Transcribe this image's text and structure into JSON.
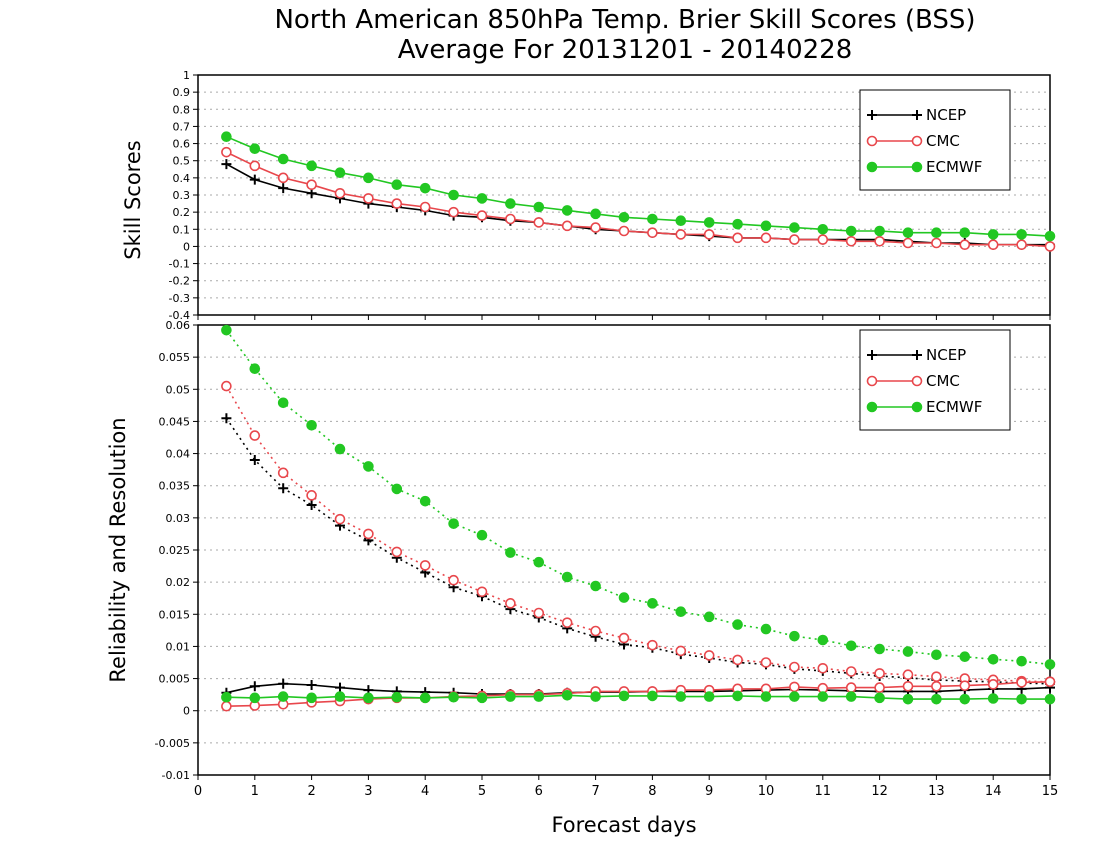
{
  "title_line1": "North American 850hPa Temp. Brier Skill Scores (BSS)",
  "title_line2": "Average For 20131201 - 20140228",
  "xlabel": "Forecast days",
  "colors": {
    "NCEP": "#000000",
    "CMC": "#e8474c",
    "ECMWF": "#22c722",
    "grid": "#aaaaaa"
  },
  "chart_data": [
    {
      "type": "line",
      "ylabel": "Skill Scores",
      "xlim": [
        0,
        15
      ],
      "ylim": [
        -0.4,
        1
      ],
      "x_ticks": [
        "0",
        "1",
        "2",
        "3",
        "4",
        "5",
        "6",
        "7",
        "8",
        "9",
        "10",
        "11",
        "12",
        "13",
        "14",
        "15"
      ],
      "y_ticks": [
        "-0.4",
        "-0.3",
        "-0.2",
        "-0.1",
        "0",
        "0.1",
        "0.2",
        "0.3",
        "0.4",
        "0.5",
        "0.6",
        "0.7",
        "0.8",
        "0.9",
        "1"
      ],
      "grid": "horizontal dotted",
      "legend_position": "top-right",
      "x": [
        0.5,
        1,
        1.5,
        2,
        2.5,
        3,
        3.5,
        4,
        4.5,
        5,
        5.5,
        6,
        6.5,
        7,
        7.5,
        8,
        8.5,
        9,
        9.5,
        10,
        10.5,
        11,
        11.5,
        12,
        12.5,
        13,
        13.5,
        14,
        14.5,
        15
      ],
      "series": [
        {
          "name": "NCEP",
          "marker": "plus",
          "line": "solid",
          "values": [
            0.48,
            0.39,
            0.34,
            0.31,
            0.28,
            0.25,
            0.23,
            0.21,
            0.18,
            0.17,
            0.15,
            0.14,
            0.12,
            0.1,
            0.09,
            0.08,
            0.07,
            0.06,
            0.05,
            0.05,
            0.04,
            0.04,
            0.04,
            0.04,
            0.03,
            0.02,
            0.02,
            0.01,
            0.01,
            0.01
          ]
        },
        {
          "name": "CMC",
          "marker": "open-circle",
          "line": "solid",
          "values": [
            0.55,
            0.47,
            0.4,
            0.36,
            0.31,
            0.28,
            0.25,
            0.23,
            0.2,
            0.18,
            0.16,
            0.14,
            0.12,
            0.11,
            0.09,
            0.08,
            0.07,
            0.07,
            0.05,
            0.05,
            0.04,
            0.04,
            0.03,
            0.03,
            0.02,
            0.02,
            0.01,
            0.01,
            0.01,
            0.0
          ]
        },
        {
          "name": "ECMWF",
          "marker": "filled-circle",
          "line": "solid",
          "values": [
            0.64,
            0.57,
            0.51,
            0.47,
            0.43,
            0.4,
            0.36,
            0.34,
            0.3,
            0.28,
            0.25,
            0.23,
            0.21,
            0.19,
            0.17,
            0.16,
            0.15,
            0.14,
            0.13,
            0.12,
            0.11,
            0.1,
            0.09,
            0.09,
            0.08,
            0.08,
            0.08,
            0.07,
            0.07,
            0.06
          ]
        }
      ]
    },
    {
      "type": "line",
      "ylabel": "Reliability and Resolution",
      "xlim": [
        0,
        15
      ],
      "ylim": [
        -0.01,
        0.06
      ],
      "x_ticks": [
        "0",
        "1",
        "2",
        "3",
        "4",
        "5",
        "6",
        "7",
        "8",
        "9",
        "10",
        "11",
        "12",
        "13",
        "14",
        "15"
      ],
      "y_ticks": [
        "-0.01",
        "-0.005",
        "0",
        "0.005",
        "0.01",
        "0.015",
        "0.02",
        "0.025",
        "0.03",
        "0.035",
        "0.04",
        "0.045",
        "0.05",
        "0.055",
        "0.06"
      ],
      "grid": "horizontal dotted",
      "legend_position": "top-right",
      "x": [
        0.5,
        1,
        1.5,
        2,
        2.5,
        3,
        3.5,
        4,
        4.5,
        5,
        5.5,
        6,
        6.5,
        7,
        7.5,
        8,
        8.5,
        9,
        9.5,
        10,
        10.5,
        11,
        11.5,
        12,
        12.5,
        13,
        13.5,
        14,
        14.5,
        15
      ],
      "series": [
        {
          "name": "NCEP",
          "marker": "plus",
          "line": "dotted",
          "role": "resolution",
          "values": [
            0.0455,
            0.039,
            0.0346,
            0.032,
            0.0288,
            0.0265,
            0.0238,
            0.0215,
            0.0192,
            0.0178,
            0.0158,
            0.0145,
            0.0128,
            0.0115,
            0.0103,
            0.0098,
            0.0088,
            0.0082,
            0.0075,
            0.0072,
            0.0065,
            0.0062,
            0.0058,
            0.0054,
            0.0051,
            0.0048,
            0.0046,
            0.0045,
            0.0043,
            0.0042
          ]
        },
        {
          "name": "CMC",
          "marker": "open-circle",
          "line": "dotted",
          "role": "resolution",
          "values": [
            0.0505,
            0.0428,
            0.037,
            0.0335,
            0.0298,
            0.0275,
            0.0247,
            0.0226,
            0.0203,
            0.0185,
            0.0167,
            0.0152,
            0.0137,
            0.0124,
            0.0113,
            0.0102,
            0.0093,
            0.0086,
            0.0079,
            0.0075,
            0.0068,
            0.0066,
            0.0061,
            0.0058,
            0.0056,
            0.0053,
            0.005,
            0.0048,
            0.0046,
            0.0045
          ]
        },
        {
          "name": "ECMWF",
          "marker": "filled-circle",
          "line": "dotted",
          "role": "resolution",
          "values": [
            0.0592,
            0.0532,
            0.0479,
            0.0444,
            0.0407,
            0.038,
            0.0345,
            0.0326,
            0.0291,
            0.0273,
            0.0246,
            0.0231,
            0.0208,
            0.0194,
            0.0176,
            0.0167,
            0.0154,
            0.0146,
            0.0134,
            0.0127,
            0.0116,
            0.011,
            0.0101,
            0.0096,
            0.0092,
            0.0087,
            0.0084,
            0.008,
            0.0077,
            0.0072
          ]
        },
        {
          "name": "NCEP",
          "marker": "plus",
          "line": "solid",
          "role": "reliability",
          "values": [
            0.0028,
            0.0038,
            0.0042,
            0.004,
            0.0036,
            0.0032,
            0.003,
            0.0029,
            0.0028,
            0.0026,
            0.0026,
            0.0026,
            0.0028,
            0.0029,
            0.0029,
            0.003,
            0.003,
            0.003,
            0.0031,
            0.0032,
            0.0033,
            0.0032,
            0.0031,
            0.003,
            0.003,
            0.003,
            0.0032,
            0.0034,
            0.0034,
            0.0036
          ]
        },
        {
          "name": "CMC",
          "marker": "open-circle",
          "line": "solid",
          "role": "reliability",
          "values": [
            0.0007,
            0.0008,
            0.001,
            0.0013,
            0.0015,
            0.0018,
            0.002,
            0.002,
            0.0022,
            0.0023,
            0.0025,
            0.0025,
            0.0027,
            0.003,
            0.003,
            0.003,
            0.0032,
            0.0032,
            0.0034,
            0.0034,
            0.0037,
            0.0035,
            0.0036,
            0.0036,
            0.0038,
            0.0038,
            0.0039,
            0.0041,
            0.0044,
            0.0045
          ]
        },
        {
          "name": "ECMWF",
          "marker": "filled-circle",
          "line": "solid",
          "role": "reliability",
          "values": [
            0.0021,
            0.002,
            0.0022,
            0.002,
            0.0022,
            0.002,
            0.0021,
            0.002,
            0.0021,
            0.002,
            0.0022,
            0.0022,
            0.0024,
            0.0022,
            0.0023,
            0.0023,
            0.0022,
            0.0022,
            0.0023,
            0.0022,
            0.0022,
            0.0022,
            0.0022,
            0.002,
            0.0018,
            0.0018,
            0.0018,
            0.0019,
            0.0018,
            0.0018
          ]
        }
      ]
    }
  ]
}
